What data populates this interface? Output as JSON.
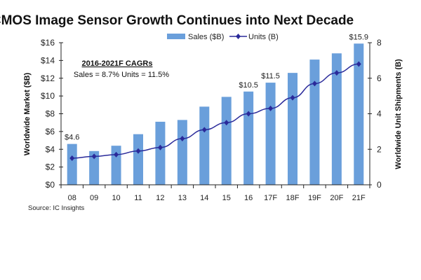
{
  "chart_data": {
    "type": "bar+line",
    "title": "CMOS Image Sensor Growth Continues into Next Decade",
    "categories": [
      "08",
      "09",
      "10",
      "11",
      "12",
      "13",
      "14",
      "15",
      "16",
      "17F",
      "18F",
      "19F",
      "20F",
      "21F"
    ],
    "series": [
      {
        "name": "Sales ($B)",
        "type": "bar",
        "axis": "left",
        "color": "#6a9fdb",
        "values": [
          4.6,
          3.8,
          4.4,
          5.7,
          7.1,
          7.3,
          8.8,
          9.9,
          10.5,
          11.5,
          12.6,
          14.1,
          14.8,
          15.9
        ]
      },
      {
        "name": "Units (B)",
        "type": "line",
        "axis": "right",
        "color": "#2a2a9a",
        "values": [
          1.5,
          1.6,
          1.7,
          1.9,
          2.1,
          2.6,
          3.1,
          3.5,
          4.0,
          4.3,
          4.9,
          5.7,
          6.3,
          6.8
        ]
      }
    ],
    "data_labels": [
      {
        "category": "08",
        "text": "$4.6"
      },
      {
        "category": "16",
        "text": "$10.5"
      },
      {
        "category": "17F",
        "text": "$11.5"
      },
      {
        "category": "21F",
        "text": "$15.9"
      }
    ],
    "ylabel": "Worldwide Market ($B)",
    "y2label": "Worldwide Unit Shipments (B)",
    "yticks": [
      "$0",
      "$2",
      "$4",
      "$6",
      "$8",
      "$10",
      "$12",
      "$14",
      "$16"
    ],
    "y2ticks": [
      "0",
      "2",
      "4",
      "6",
      "8"
    ],
    "annotation": {
      "heading": "2016-2021F CAGRs",
      "text": "Sales = 8.7%  Units = 11.5%"
    },
    "source": "Source: IC Insights"
  }
}
